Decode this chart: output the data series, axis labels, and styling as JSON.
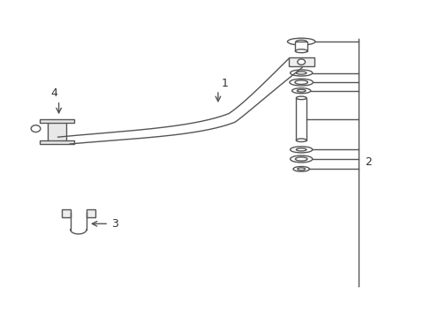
{
  "background_color": "#ffffff",
  "line_color": "#555555",
  "text_color": "#333333",
  "fig_width": 4.89,
  "fig_height": 3.6,
  "dpi": 100
}
